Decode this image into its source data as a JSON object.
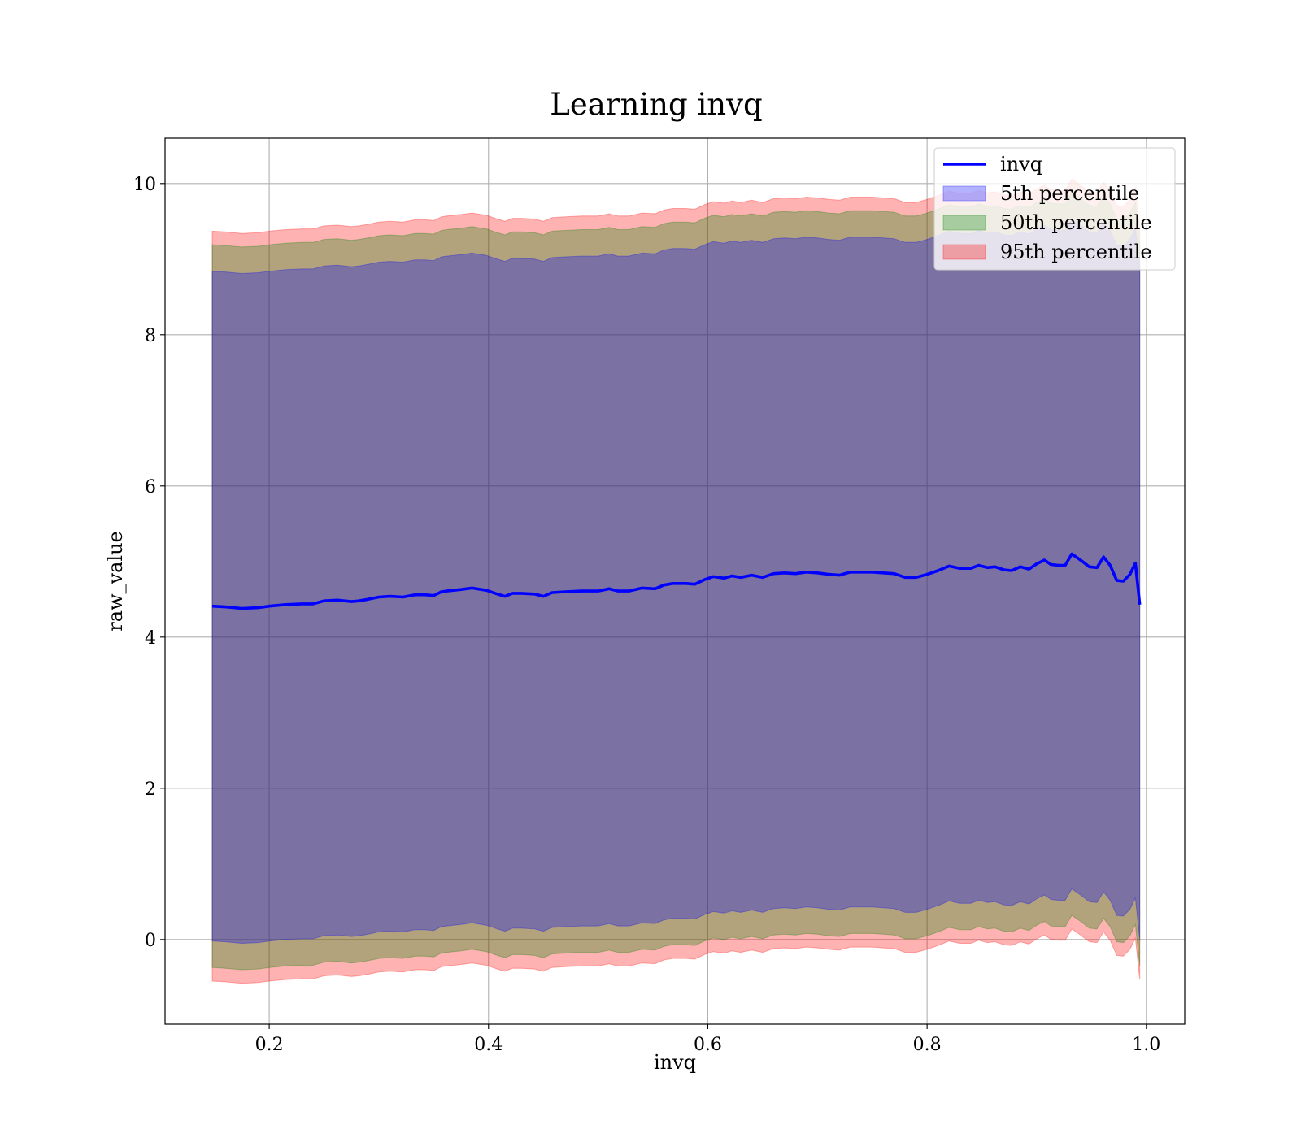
{
  "chart_data": {
    "type": "area",
    "title": "Learning invq",
    "xlabel": "invq",
    "ylabel": "raw_value",
    "xlim": [
      0.105,
      1.035
    ],
    "ylim": [
      -1.12,
      10.6
    ],
    "xticks": [
      0.2,
      0.4,
      0.6,
      0.8,
      1.0
    ],
    "xtick_labels": [
      "0.2",
      "0.4",
      "0.6",
      "0.8",
      "1.0"
    ],
    "yticks": [
      0,
      2,
      4,
      6,
      8,
      10
    ],
    "ytick_labels": [
      "0",
      "2",
      "4",
      "6",
      "8",
      "10"
    ],
    "grid": true,
    "legend_position": "upper right",
    "x": [
      0.148,
      0.16,
      0.175,
      0.19,
      0.2,
      0.215,
      0.23,
      0.24,
      0.25,
      0.262,
      0.275,
      0.282,
      0.29,
      0.3,
      0.31,
      0.322,
      0.333,
      0.342,
      0.35,
      0.357,
      0.362,
      0.375,
      0.385,
      0.398,
      0.408,
      0.415,
      0.422,
      0.43,
      0.442,
      0.45,
      0.458,
      0.47,
      0.485,
      0.5,
      0.51,
      0.518,
      0.528,
      0.54,
      0.552,
      0.56,
      0.568,
      0.58,
      0.588,
      0.597,
      0.605,
      0.615,
      0.622,
      0.63,
      0.64,
      0.65,
      0.66,
      0.67,
      0.68,
      0.69,
      0.7,
      0.71,
      0.72,
      0.73,
      0.74,
      0.75,
      0.76,
      0.77,
      0.78,
      0.79,
      0.8,
      0.81,
      0.82,
      0.83,
      0.84,
      0.847,
      0.855,
      0.862,
      0.87,
      0.877,
      0.885,
      0.893,
      0.9,
      0.907,
      0.913,
      0.92,
      0.926,
      0.932,
      0.94,
      0.948,
      0.955,
      0.961,
      0.967,
      0.973,
      0.979,
      0.985,
      0.99,
      0.994
    ],
    "series": [
      {
        "name": "invq",
        "type": "line",
        "color": "#0000ff",
        "values": [
          4.41,
          4.4,
          4.38,
          4.39,
          4.41,
          4.43,
          4.44,
          4.44,
          4.48,
          4.49,
          4.47,
          4.48,
          4.5,
          4.53,
          4.54,
          4.53,
          4.56,
          4.56,
          4.55,
          4.6,
          4.61,
          4.63,
          4.65,
          4.62,
          4.57,
          4.54,
          4.58,
          4.58,
          4.57,
          4.54,
          4.59,
          4.6,
          4.61,
          4.61,
          4.64,
          4.61,
          4.61,
          4.65,
          4.64,
          4.69,
          4.71,
          4.71,
          4.7,
          4.76,
          4.8,
          4.78,
          4.81,
          4.79,
          4.82,
          4.79,
          4.84,
          4.85,
          4.84,
          4.86,
          4.85,
          4.83,
          4.82,
          4.86,
          4.86,
          4.86,
          4.85,
          4.84,
          4.79,
          4.79,
          4.83,
          4.88,
          4.94,
          4.91,
          4.91,
          4.95,
          4.92,
          4.93,
          4.89,
          4.88,
          4.93,
          4.9,
          4.97,
          5.02,
          4.96,
          4.95,
          4.95,
          5.1,
          5.02,
          4.93,
          4.92,
          5.06,
          4.95,
          4.75,
          4.74,
          4.83,
          4.98,
          4.43
        ]
      },
      {
        "name": "5th percentile",
        "type": "band",
        "color": "#0000ff",
        "lower": [
          -0.02,
          -0.03,
          -0.05,
          -0.04,
          -0.02,
          0.0,
          0.01,
          0.01,
          0.05,
          0.06,
          0.04,
          0.05,
          0.07,
          0.1,
          0.11,
          0.1,
          0.13,
          0.13,
          0.12,
          0.17,
          0.18,
          0.2,
          0.22,
          0.19,
          0.14,
          0.11,
          0.15,
          0.15,
          0.14,
          0.11,
          0.16,
          0.17,
          0.18,
          0.18,
          0.21,
          0.18,
          0.18,
          0.22,
          0.21,
          0.26,
          0.28,
          0.28,
          0.27,
          0.33,
          0.37,
          0.35,
          0.38,
          0.36,
          0.39,
          0.36,
          0.41,
          0.42,
          0.41,
          0.43,
          0.42,
          0.4,
          0.39,
          0.43,
          0.43,
          0.43,
          0.42,
          0.41,
          0.36,
          0.36,
          0.4,
          0.45,
          0.51,
          0.48,
          0.48,
          0.52,
          0.49,
          0.5,
          0.46,
          0.45,
          0.5,
          0.47,
          0.54,
          0.59,
          0.53,
          0.52,
          0.52,
          0.67,
          0.59,
          0.5,
          0.49,
          0.63,
          0.52,
          0.32,
          0.31,
          0.4,
          0.55,
          0.0
        ],
        "upper": [
          8.84,
          8.83,
          8.81,
          8.82,
          8.84,
          8.86,
          8.87,
          8.87,
          8.91,
          8.92,
          8.9,
          8.91,
          8.93,
          8.96,
          8.97,
          8.96,
          8.99,
          8.99,
          8.98,
          9.03,
          9.04,
          9.06,
          9.08,
          9.05,
          9.0,
          8.97,
          9.01,
          9.01,
          9.0,
          8.97,
          9.02,
          9.03,
          9.04,
          9.04,
          9.07,
          9.04,
          9.04,
          9.08,
          9.07,
          9.12,
          9.14,
          9.14,
          9.13,
          9.19,
          9.23,
          9.21,
          9.24,
          9.22,
          9.25,
          9.22,
          9.27,
          9.28,
          9.27,
          9.29,
          9.28,
          9.26,
          9.25,
          9.29,
          9.29,
          9.29,
          9.28,
          9.27,
          9.22,
          9.22,
          9.26,
          9.31,
          9.37,
          9.34,
          9.34,
          9.38,
          9.35,
          9.36,
          9.32,
          9.31,
          9.36,
          9.33,
          9.4,
          9.45,
          9.39,
          9.38,
          9.38,
          9.53,
          9.45,
          9.36,
          9.35,
          9.49,
          9.38,
          9.18,
          9.17,
          9.26,
          9.41,
          8.86
        ]
      },
      {
        "name": "50th percentile",
        "type": "band",
        "color": "#008000",
        "lower": [
          -0.37,
          -0.38,
          -0.4,
          -0.39,
          -0.37,
          -0.35,
          -0.34,
          -0.34,
          -0.3,
          -0.29,
          -0.31,
          -0.3,
          -0.28,
          -0.25,
          -0.24,
          -0.25,
          -0.22,
          -0.22,
          -0.23,
          -0.18,
          -0.17,
          -0.15,
          -0.13,
          -0.16,
          -0.21,
          -0.24,
          -0.2,
          -0.2,
          -0.21,
          -0.24,
          -0.19,
          -0.18,
          -0.17,
          -0.17,
          -0.14,
          -0.17,
          -0.17,
          -0.13,
          -0.14,
          -0.09,
          -0.07,
          -0.07,
          -0.08,
          -0.02,
          0.02,
          0.0,
          0.03,
          0.01,
          0.04,
          0.01,
          0.06,
          0.07,
          0.06,
          0.08,
          0.07,
          0.05,
          0.04,
          0.08,
          0.08,
          0.08,
          0.07,
          0.06,
          0.01,
          0.01,
          0.05,
          0.1,
          0.16,
          0.13,
          0.13,
          0.17,
          0.14,
          0.15,
          0.11,
          0.1,
          0.15,
          0.12,
          0.19,
          0.24,
          0.18,
          0.17,
          0.17,
          0.32,
          0.24,
          0.15,
          0.14,
          0.28,
          0.17,
          -0.03,
          -0.04,
          0.05,
          0.2,
          -0.35
        ],
        "upper": [
          9.19,
          9.18,
          9.16,
          9.17,
          9.19,
          9.21,
          9.22,
          9.22,
          9.26,
          9.27,
          9.25,
          9.26,
          9.28,
          9.31,
          9.32,
          9.31,
          9.34,
          9.34,
          9.33,
          9.38,
          9.39,
          9.41,
          9.43,
          9.4,
          9.35,
          9.32,
          9.36,
          9.36,
          9.35,
          9.32,
          9.37,
          9.38,
          9.39,
          9.39,
          9.42,
          9.39,
          9.39,
          9.43,
          9.42,
          9.47,
          9.49,
          9.49,
          9.48,
          9.54,
          9.58,
          9.56,
          9.59,
          9.57,
          9.6,
          9.57,
          9.62,
          9.63,
          9.62,
          9.64,
          9.63,
          9.61,
          9.6,
          9.64,
          9.64,
          9.64,
          9.63,
          9.62,
          9.57,
          9.57,
          9.61,
          9.66,
          9.72,
          9.69,
          9.69,
          9.73,
          9.7,
          9.71,
          9.67,
          9.66,
          9.71,
          9.68,
          9.75,
          9.8,
          9.74,
          9.73,
          9.73,
          9.88,
          9.8,
          9.71,
          9.7,
          9.84,
          9.73,
          9.53,
          9.52,
          9.61,
          9.76,
          9.21
        ]
      },
      {
        "name": "95th percentile",
        "type": "band",
        "color": "#ff0000",
        "lower": [
          -0.55,
          -0.56,
          -0.58,
          -0.57,
          -0.55,
          -0.53,
          -0.52,
          -0.52,
          -0.48,
          -0.47,
          -0.49,
          -0.48,
          -0.46,
          -0.43,
          -0.42,
          -0.43,
          -0.4,
          -0.4,
          -0.41,
          -0.36,
          -0.35,
          -0.33,
          -0.31,
          -0.34,
          -0.39,
          -0.42,
          -0.38,
          -0.38,
          -0.39,
          -0.42,
          -0.37,
          -0.36,
          -0.35,
          -0.35,
          -0.32,
          -0.35,
          -0.35,
          -0.31,
          -0.32,
          -0.27,
          -0.25,
          -0.25,
          -0.26,
          -0.2,
          -0.16,
          -0.18,
          -0.15,
          -0.17,
          -0.14,
          -0.17,
          -0.12,
          -0.11,
          -0.12,
          -0.1,
          -0.11,
          -0.13,
          -0.14,
          -0.1,
          -0.1,
          -0.1,
          -0.11,
          -0.12,
          -0.17,
          -0.17,
          -0.13,
          -0.08,
          -0.02,
          -0.05,
          -0.05,
          -0.01,
          -0.04,
          -0.03,
          -0.07,
          -0.08,
          -0.03,
          -0.06,
          0.01,
          0.06,
          0.0,
          -0.01,
          -0.01,
          0.14,
          0.06,
          -0.03,
          -0.04,
          0.1,
          -0.01,
          -0.21,
          -0.22,
          -0.13,
          0.02,
          -0.53
        ],
        "upper": [
          9.37,
          9.36,
          9.34,
          9.35,
          9.37,
          9.39,
          9.4,
          9.4,
          9.44,
          9.45,
          9.43,
          9.44,
          9.46,
          9.49,
          9.5,
          9.49,
          9.52,
          9.52,
          9.51,
          9.56,
          9.57,
          9.59,
          9.61,
          9.58,
          9.53,
          9.5,
          9.54,
          9.54,
          9.53,
          9.5,
          9.55,
          9.56,
          9.57,
          9.57,
          9.6,
          9.57,
          9.57,
          9.61,
          9.6,
          9.65,
          9.67,
          9.67,
          9.66,
          9.72,
          9.76,
          9.74,
          9.77,
          9.75,
          9.78,
          9.75,
          9.8,
          9.81,
          9.8,
          9.82,
          9.81,
          9.79,
          9.78,
          9.82,
          9.82,
          9.82,
          9.81,
          9.8,
          9.75,
          9.75,
          9.79,
          9.84,
          9.9,
          9.87,
          9.87,
          9.91,
          9.88,
          9.89,
          9.85,
          9.84,
          9.89,
          9.86,
          9.93,
          9.98,
          9.92,
          9.91,
          9.91,
          10.06,
          9.98,
          9.89,
          9.88,
          10.02,
          9.91,
          9.71,
          9.7,
          9.79,
          9.94,
          9.39
        ]
      }
    ],
    "legend": [
      {
        "label": "invq",
        "kind": "line",
        "color": "#0000ff"
      },
      {
        "label": "5th percentile",
        "kind": "patch",
        "color": "#0000ff"
      },
      {
        "label": "50th percentile",
        "kind": "patch",
        "color": "#008000"
      },
      {
        "label": "95th percentile",
        "kind": "patch",
        "color": "#ff0000"
      }
    ]
  }
}
